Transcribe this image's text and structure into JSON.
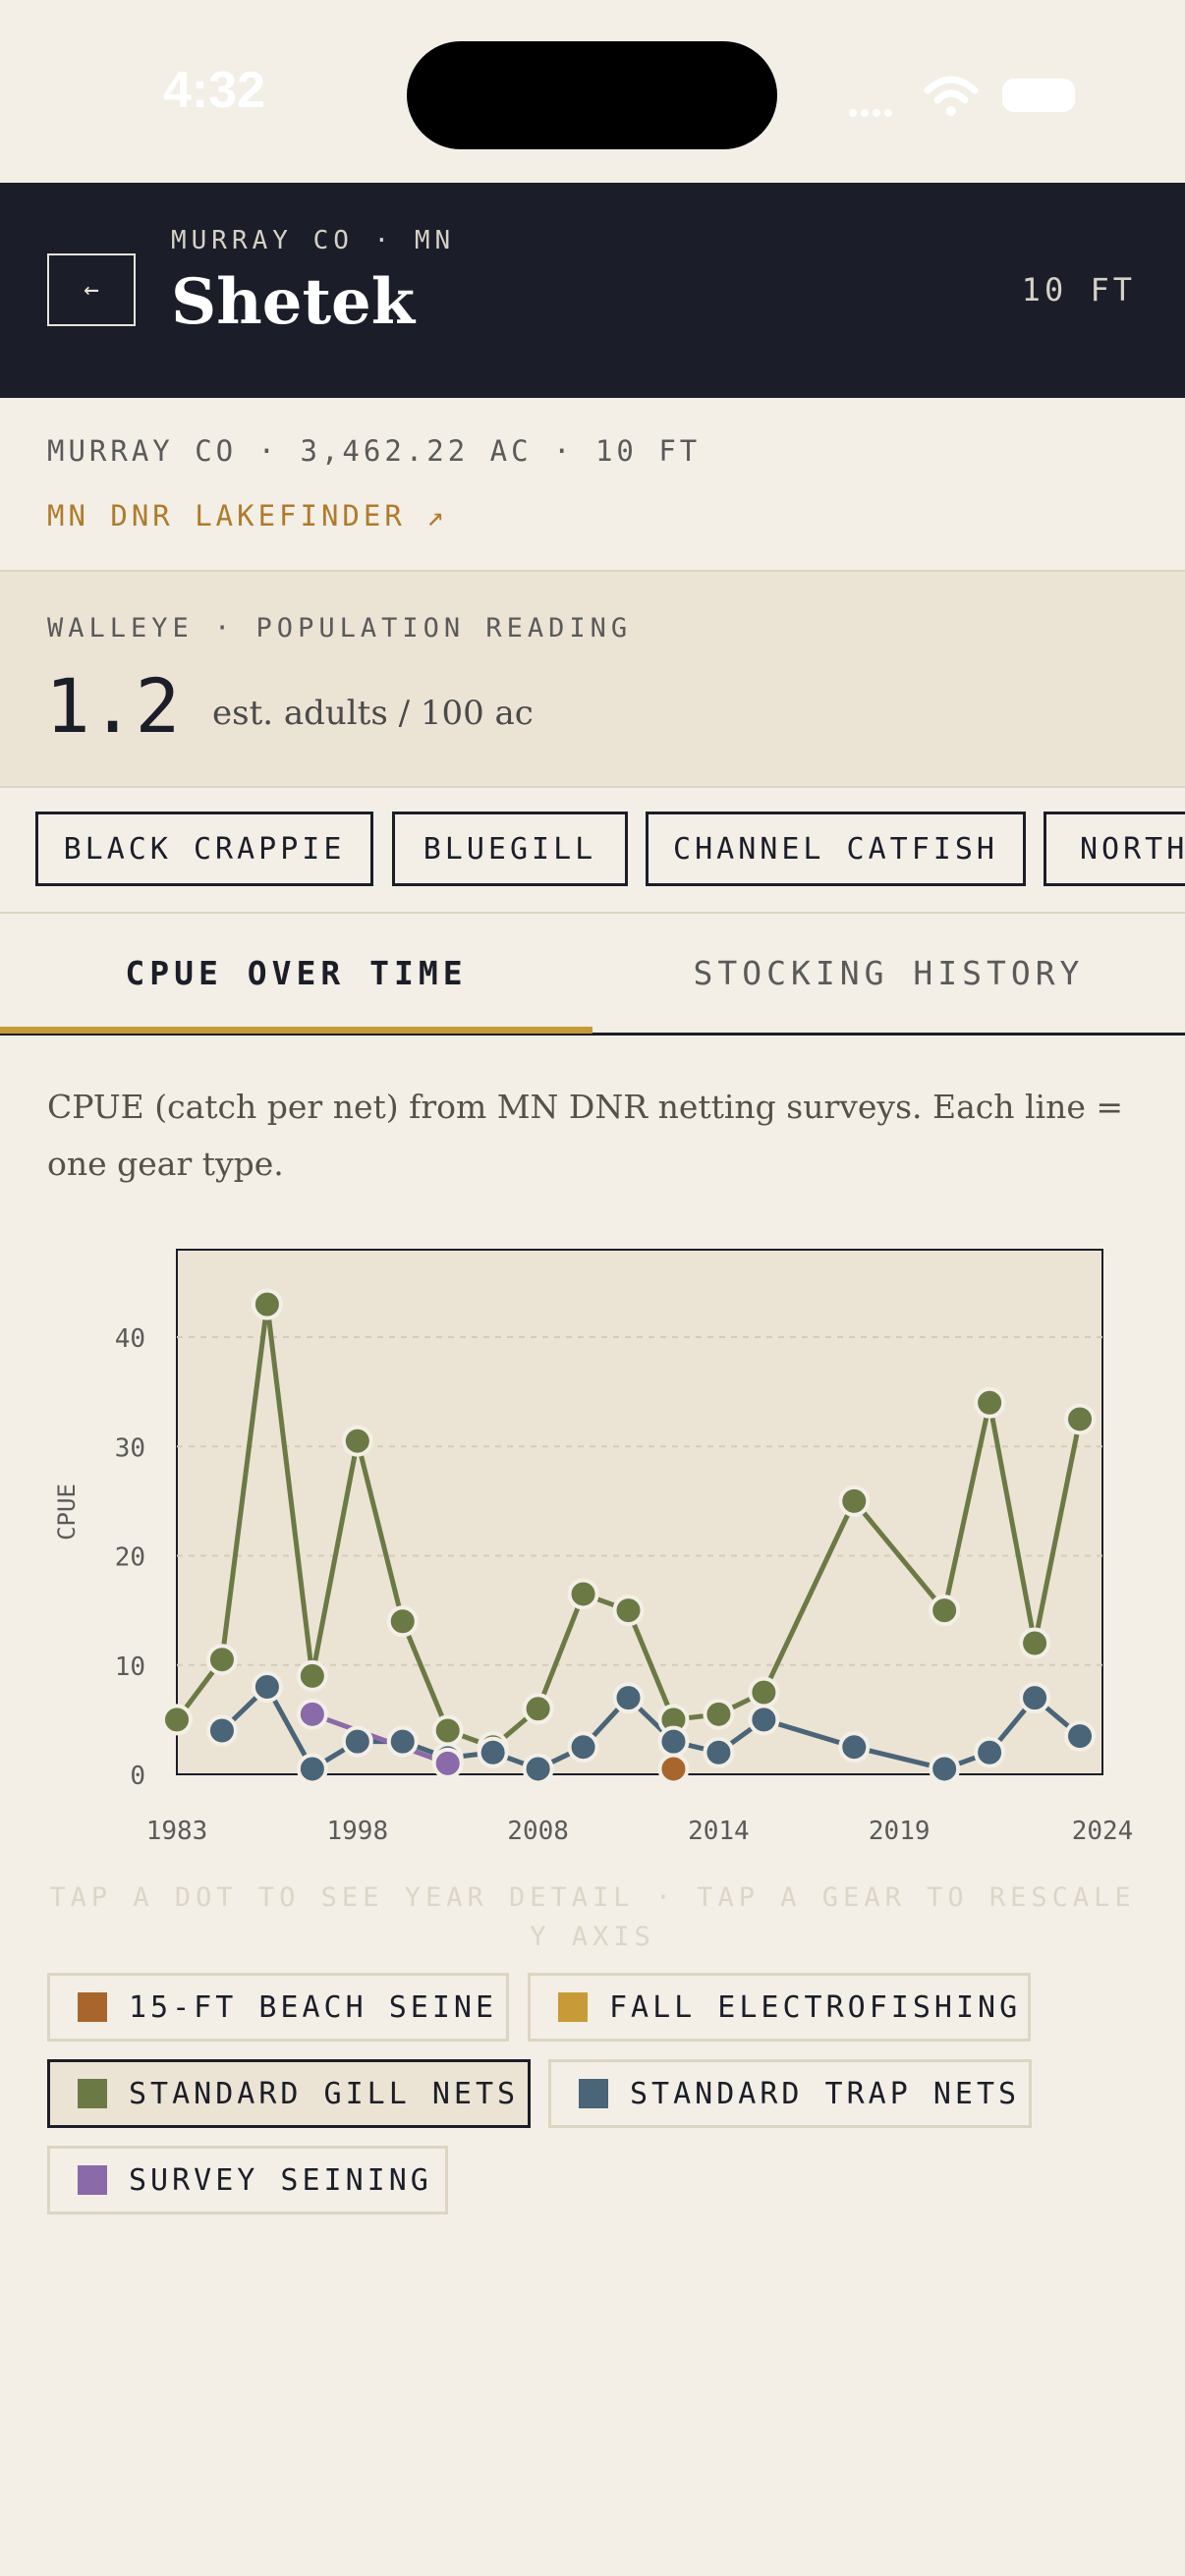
{
  "status": {
    "time": "4:32"
  },
  "header": {
    "back_icon": "←",
    "subtitle": "MURRAY CO · MN",
    "title": "Shetek",
    "depth": "10 FT"
  },
  "info": {
    "line": "MURRAY CO · 3,462.22 AC · 10 FT",
    "link": "MN DNR LAKEFINDER ↗"
  },
  "reading": {
    "label": "WALLEYE · POPULATION READING",
    "value": "1.2",
    "unit": "est. adults / 100 ac"
  },
  "species_chips": [
    "BLACK CRAPPIE",
    "BLUEGILL",
    "CHANNEL CATFISH",
    "NORTHERN PIKE"
  ],
  "tabs": [
    {
      "label": "CPUE OVER TIME",
      "active": true
    },
    {
      "label": "STOCKING HISTORY",
      "active": false
    }
  ],
  "description": "CPUE (catch per net) from MN DNR netting surveys. Each line = one gear type.",
  "chart_data": {
    "type": "line",
    "xlim": [
      1983,
      2024
    ],
    "ylim": [
      0,
      48
    ],
    "ylabel": "CPUE",
    "x_ticks": [
      "1983",
      "1998",
      "2008",
      "2014",
      "2019",
      "2024"
    ],
    "y_ticks": [
      0,
      10,
      20,
      30,
      40
    ],
    "series": [
      {
        "name": "STANDARD GILL NETS",
        "color": "#6b7a45",
        "points": [
          [
            1983,
            5
          ],
          [
            1985,
            10.5
          ],
          [
            1987,
            43
          ],
          [
            1989,
            9
          ],
          [
            1991,
            30.5
          ],
          [
            1993,
            14
          ],
          [
            1995,
            4
          ],
          [
            1997,
            2.5
          ],
          [
            1999,
            6
          ],
          [
            2001,
            16.5
          ],
          [
            2003,
            15
          ],
          [
            2005,
            5
          ],
          [
            2007,
            5.5
          ],
          [
            2009,
            7.5
          ],
          [
            2013,
            25
          ],
          [
            2017,
            15
          ],
          [
            2019,
            34
          ],
          [
            2021,
            12
          ],
          [
            2023,
            32.5
          ]
        ]
      },
      {
        "name": "STANDARD TRAP NETS",
        "color": "#4a6478",
        "points": [
          [
            1985,
            4
          ],
          [
            1987,
            8
          ],
          [
            1989,
            0.5
          ],
          [
            1991,
            3
          ],
          [
            1993,
            3
          ],
          [
            1995,
            1.5
          ],
          [
            1997,
            2
          ],
          [
            1999,
            0.5
          ],
          [
            2001,
            2.5
          ],
          [
            2003,
            7
          ],
          [
            2005,
            3
          ],
          [
            2007,
            2
          ],
          [
            2009,
            5
          ],
          [
            2013,
            2.5
          ],
          [
            2017,
            0.5
          ],
          [
            2019,
            2
          ],
          [
            2021,
            7
          ],
          [
            2023,
            3.5
          ]
        ]
      },
      {
        "name": "SURVEY SEINING",
        "color": "#8a6aa8",
        "points": [
          [
            1989,
            5.5
          ],
          [
            1995,
            1
          ]
        ]
      },
      {
        "name": "15-FT BEACH SEINE",
        "color": "#a8662c",
        "points": [
          [
            2005,
            0.5
          ]
        ]
      }
    ]
  },
  "hint": "TAP A DOT TO SEE YEAR DETAIL · TAP A GEAR TO RESCALE Y AXIS",
  "legend": [
    {
      "label": "15-FT BEACH SEINE",
      "color": "#a8662c",
      "selected": false
    },
    {
      "label": "FALL ELECTROFISHING",
      "color": "#c89a38",
      "selected": false
    },
    {
      "label": "STANDARD GILL NETS",
      "color": "#6b7a45",
      "selected": true
    },
    {
      "label": "STANDARD TRAP NETS",
      "color": "#4a6478",
      "selected": false
    },
    {
      "label": "SURVEY SEINING",
      "color": "#8a6aa8",
      "selected": false
    }
  ]
}
